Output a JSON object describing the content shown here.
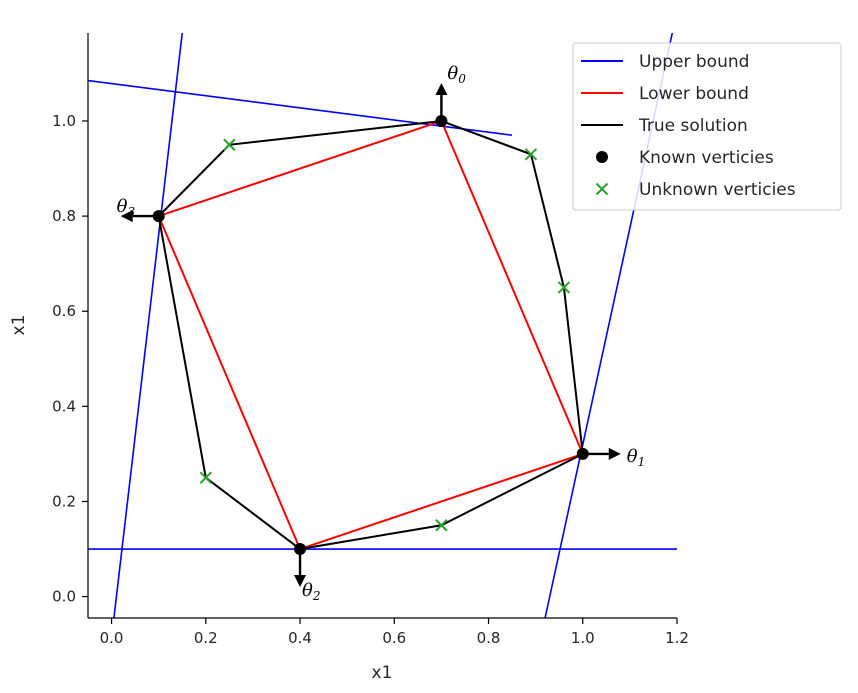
{
  "chart_data": {
    "type": "line",
    "xlabel": "x1",
    "ylabel": "x1",
    "xlim": [
      -0.05,
      1.2
    ],
    "ylim": [
      -0.045,
      1.185
    ],
    "xticks": [
      "0.0",
      "0.2",
      "0.4",
      "0.6",
      "0.8",
      "1.0",
      "1.2"
    ],
    "yticks": [
      "0.0",
      "0.2",
      "0.4",
      "0.6",
      "0.8",
      "1.0"
    ],
    "xtick_values": [
      0.0,
      0.2,
      0.4,
      0.6,
      0.8,
      1.0,
      1.2
    ],
    "ytick_values": [
      0.0,
      0.2,
      0.4,
      0.6,
      0.8,
      1.0
    ],
    "grid": false,
    "legend_position": "top-right",
    "series": [
      {
        "name": "Upper bound",
        "color": "#0000ff",
        "kind": "lines",
        "segments": [
          [
            [
              -0.05,
              1.085
            ],
            [
              0.85,
              0.97
            ]
          ],
          [
            [
              0.005,
              -0.045
            ],
            [
              0.15,
              1.185
            ]
          ],
          [
            [
              -0.05,
              0.1
            ],
            [
              1.2,
              0.1
            ]
          ],
          [
            [
              0.92,
              -0.045
            ],
            [
              1.19,
              1.185
            ]
          ]
        ]
      },
      {
        "name": "Lower bound",
        "color": "#ff0000",
        "kind": "polygon",
        "points": [
          [
            0.7,
            1.0
          ],
          [
            1.0,
            0.3
          ],
          [
            0.4,
            0.1
          ],
          [
            0.1,
            0.8
          ]
        ]
      },
      {
        "name": "True solution",
        "color": "#000000",
        "kind": "polygon",
        "points": [
          [
            0.7,
            1.0
          ],
          [
            0.89,
            0.93
          ],
          [
            0.96,
            0.65
          ],
          [
            1.0,
            0.3
          ],
          [
            0.7,
            0.15
          ],
          [
            0.4,
            0.1
          ],
          [
            0.2,
            0.25
          ],
          [
            0.1,
            0.8
          ],
          [
            0.25,
            0.95
          ]
        ]
      },
      {
        "name": "Known verticies",
        "color": "#000000",
        "kind": "markers-dot",
        "points": [
          [
            0.7,
            1.0
          ],
          [
            1.0,
            0.3
          ],
          [
            0.4,
            0.1
          ],
          [
            0.1,
            0.8
          ]
        ]
      },
      {
        "name": "Unknown verticies",
        "color": "#2ca02c",
        "kind": "markers-x",
        "points": [
          [
            0.25,
            0.95
          ],
          [
            0.89,
            0.93
          ],
          [
            0.96,
            0.65
          ],
          [
            0.2,
            0.25
          ],
          [
            0.7,
            0.15
          ]
        ]
      }
    ],
    "annotations": [
      {
        "symbol": "θ",
        "sub": "0",
        "at": [
          0.7,
          1.0
        ],
        "direction": "up"
      },
      {
        "symbol": "θ",
        "sub": "1",
        "at": [
          1.0,
          0.3
        ],
        "direction": "right"
      },
      {
        "symbol": "θ",
        "sub": "2",
        "at": [
          0.4,
          0.1
        ],
        "direction": "down"
      },
      {
        "symbol": "θ",
        "sub": "3",
        "at": [
          0.1,
          0.8
        ],
        "direction": "left"
      }
    ]
  }
}
